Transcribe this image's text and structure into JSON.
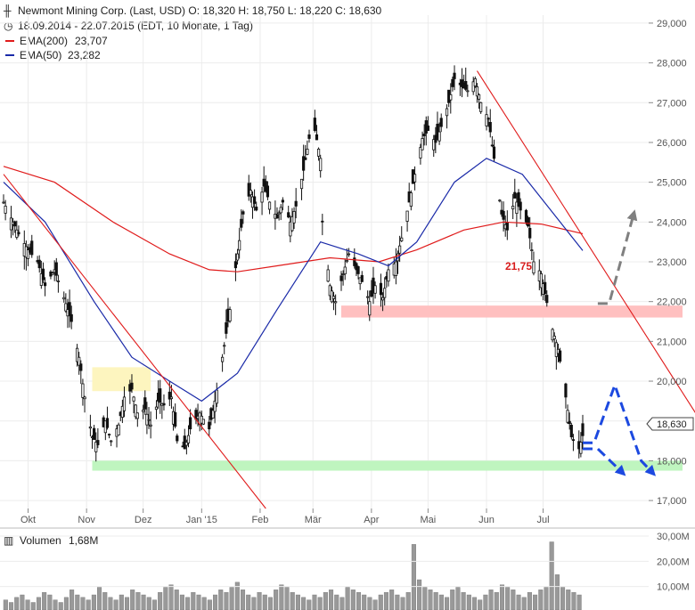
{
  "header": {
    "title_line": "Newmont Mining Corp. (Last, USD)  O: 18,320  H: 18,750  L: 18,220  C: 18,630",
    "period_line": "18.09.2014 - 22.07.2015 (EDT, 10 Monate, 1 Tag)",
    "legend": [
      {
        "label": "EMA(200)",
        "value": "23,707",
        "color": "#e01b1b"
      },
      {
        "label": "EMA(50)",
        "value": "23,282",
        "color": "#1a2aa8"
      }
    ],
    "volume_label": "Volumen",
    "volume_value": "1,68M"
  },
  "price_axis": {
    "ticks": [
      "29,000",
      "28,000",
      "27,000",
      "26,000",
      "25,000",
      "24,000",
      "23,000",
      "22,000",
      "21,000",
      "20,000",
      "19,000",
      "18,000",
      "17,000"
    ],
    "last_price_label": "18,630"
  },
  "volume_axis": {
    "ticks": [
      "30,00M",
      "20,00M",
      "10,00M"
    ]
  },
  "time_axis": {
    "labels": [
      "Okt",
      "Nov",
      "Dez",
      "Jan '15",
      "Feb",
      "Mär",
      "Apr",
      "Mai",
      "Jun",
      "Jul"
    ]
  },
  "annotations": {
    "resistance_label": "21,75"
  },
  "colors": {
    "candle": "#111111",
    "ema200": "#e01b1b",
    "ema50": "#1a2aa8",
    "trendline": "#e01b1b",
    "support_zone": "#bff5bf",
    "resistance_zone": "#ffc0c0",
    "old_zone": "#fdf5bf",
    "forecast_blue": "#1c49e0",
    "forecast_gray": "#808080",
    "volume": "#999999"
  },
  "chart_data": {
    "type": "candlestick",
    "title": "Newmont Mining Corp. (Last, USD)",
    "ylim": [
      16.8,
      29.2
    ],
    "x_range": [
      "2014-09-18",
      "2015-07-22"
    ],
    "last": {
      "open": 18.32,
      "high": 18.75,
      "low": 18.22,
      "close": 18.63
    },
    "price_path": [
      [
        "2014-09-18",
        24.5
      ],
      [
        "2014-09-22",
        24.1
      ],
      [
        "2014-09-26",
        23.7
      ],
      [
        "2014-10-01",
        23.3
      ],
      [
        "2014-10-06",
        23.0
      ],
      [
        "2014-10-10",
        22.4
      ],
      [
        "2014-10-15",
        22.8
      ],
      [
        "2014-10-20",
        22.1
      ],
      [
        "2014-10-24",
        21.5
      ],
      [
        "2014-10-28",
        20.6
      ],
      [
        "2014-10-31",
        19.6
      ],
      [
        "2014-11-04",
        18.6
      ],
      [
        "2014-11-07",
        18.4
      ],
      [
        "2014-11-11",
        19.0
      ],
      [
        "2014-11-14",
        18.5
      ],
      [
        "2014-11-18",
        18.9
      ],
      [
        "2014-11-21",
        19.6
      ],
      [
        "2014-11-25",
        19.8
      ],
      [
        "2014-11-28",
        19.2
      ],
      [
        "2014-12-02",
        19.3
      ],
      [
        "2014-12-05",
        18.9
      ],
      [
        "2014-12-09",
        19.5
      ],
      [
        "2014-12-12",
        19.4
      ],
      [
        "2014-12-16",
        19.6
      ],
      [
        "2014-12-19",
        18.5
      ],
      [
        "2014-12-23",
        18.3
      ],
      [
        "2014-12-26",
        18.8
      ],
      [
        "2014-12-31",
        19.2
      ],
      [
        "2015-01-05",
        18.8
      ],
      [
        "2015-01-08",
        19.5
      ],
      [
        "2015-01-12",
        20.6
      ],
      [
        "2015-01-16",
        21.8
      ],
      [
        "2015-01-20",
        23.2
      ],
      [
        "2015-01-23",
        24.2
      ],
      [
        "2015-01-27",
        24.8
      ],
      [
        "2015-01-30",
        24.3
      ],
      [
        "2015-02-03",
        24.9
      ],
      [
        "2015-02-06",
        24.5
      ],
      [
        "2015-02-10",
        24.1
      ],
      [
        "2015-02-13",
        24.5
      ],
      [
        "2015-02-17",
        24.0
      ],
      [
        "2015-02-20",
        24.4
      ],
      [
        "2015-02-24",
        25.3
      ],
      [
        "2015-02-27",
        26.1
      ],
      [
        "2015-03-02",
        26.3
      ],
      [
        "2015-03-05",
        25.6
      ],
      [
        "2015-03-06",
        24.0
      ],
      [
        "2015-03-10",
        22.4
      ],
      [
        "2015-03-13",
        22.0
      ],
      [
        "2015-03-17",
        22.7
      ],
      [
        "2015-03-20",
        23.2
      ],
      [
        "2015-03-24",
        22.8
      ],
      [
        "2015-03-27",
        22.5
      ],
      [
        "2015-03-31",
        22.0
      ],
      [
        "2015-04-03",
        22.4
      ],
      [
        "2015-04-07",
        22.1
      ],
      [
        "2015-04-10",
        22.8
      ],
      [
        "2015-04-14",
        23.0
      ],
      [
        "2015-04-17",
        23.6
      ],
      [
        "2015-04-21",
        24.5
      ],
      [
        "2015-04-24",
        25.2
      ],
      [
        "2015-04-28",
        26.1
      ],
      [
        "2015-05-01",
        26.3
      ],
      [
        "2015-05-05",
        26.0
      ],
      [
        "2015-05-08",
        26.4
      ],
      [
        "2015-05-12",
        27.0
      ],
      [
        "2015-05-15",
        27.6
      ],
      [
        "2015-05-19",
        27.4
      ],
      [
        "2015-05-22",
        27.3
      ],
      [
        "2015-05-26",
        27.6
      ],
      [
        "2015-05-29",
        27.0
      ],
      [
        "2015-06-02",
        26.6
      ],
      [
        "2015-06-05",
        25.6
      ],
      [
        "2015-06-09",
        24.2
      ],
      [
        "2015-06-12",
        23.8
      ],
      [
        "2015-06-16",
        24.6
      ],
      [
        "2015-06-19",
        24.3
      ],
      [
        "2015-06-23",
        23.9
      ],
      [
        "2015-06-26",
        23.0
      ],
      [
        "2015-06-30",
        22.7
      ],
      [
        "2015-07-02",
        22.2
      ],
      [
        "2015-07-06",
        21.3
      ],
      [
        "2015-07-09",
        20.8
      ],
      [
        "2015-07-13",
        19.6
      ],
      [
        "2015-07-16",
        18.6
      ],
      [
        "2015-07-20",
        18.3
      ],
      [
        "2015-07-22",
        18.63
      ]
    ],
    "ema200": [
      [
        "2014-09-18",
        25.4
      ],
      [
        "2014-10-15",
        25.0
      ],
      [
        "2014-11-15",
        24.0
      ],
      [
        "2014-12-15",
        23.2
      ],
      [
        "2015-01-05",
        22.8
      ],
      [
        "2015-01-20",
        22.75
      ],
      [
        "2015-02-10",
        22.9
      ],
      [
        "2015-03-10",
        23.1
      ],
      [
        "2015-04-05",
        23.0
      ],
      [
        "2015-04-25",
        23.3
      ],
      [
        "2015-05-20",
        23.8
      ],
      [
        "2015-06-10",
        24.0
      ],
      [
        "2015-06-30",
        23.95
      ],
      [
        "2015-07-22",
        23.707
      ]
    ],
    "ema50": [
      [
        "2014-09-18",
        25.0
      ],
      [
        "2014-10-10",
        24.0
      ],
      [
        "2014-11-05",
        22.0
      ],
      [
        "2014-11-25",
        20.6
      ],
      [
        "2014-12-15",
        20.0
      ],
      [
        "2015-01-01",
        19.5
      ],
      [
        "2015-01-20",
        20.2
      ],
      [
        "2015-02-10",
        21.8
      ],
      [
        "2015-03-05",
        23.5
      ],
      [
        "2015-03-25",
        23.2
      ],
      [
        "2015-04-10",
        22.9
      ],
      [
        "2015-04-25",
        23.5
      ],
      [
        "2015-05-15",
        25.0
      ],
      [
        "2015-06-01",
        25.6
      ],
      [
        "2015-06-20",
        25.2
      ],
      [
        "2015-07-10",
        24.0
      ],
      [
        "2015-07-22",
        23.282
      ]
    ],
    "volume": [
      4,
      3,
      5,
      6,
      4,
      3,
      5,
      7,
      6,
      4,
      3,
      5,
      8,
      6,
      5,
      4,
      6,
      9,
      7,
      5,
      4,
      6,
      5,
      8,
      7,
      6,
      5,
      4,
      7,
      9,
      10,
      8,
      6,
      5,
      7,
      6,
      5,
      4,
      6,
      8,
      7,
      9,
      11,
      8,
      6,
      5,
      7,
      6,
      5,
      8,
      10,
      9,
      7,
      6,
      5,
      4,
      6,
      5,
      7,
      8,
      6,
      5,
      9,
      8,
      7,
      6,
      5,
      4,
      6,
      7,
      8,
      6,
      5,
      7,
      26,
      12,
      9,
      8,
      7,
      6,
      5,
      8,
      9,
      7,
      6,
      5,
      4,
      6,
      8,
      7,
      10,
      9,
      8,
      6,
      5,
      7,
      6,
      8,
      9,
      27,
      14,
      9,
      8,
      7,
      6
    ],
    "volume_ylim": [
      0,
      30
    ],
    "trendlines": [
      {
        "start": [
          "2014-09-18",
          25.2
        ],
        "end": [
          "2015-02-04",
          16.8
        ]
      },
      {
        "start": [
          "2015-05-27",
          27.8
        ],
        "end": [
          "2015-10-10",
          17.7
        ]
      }
    ],
    "zones": [
      {
        "name": "support",
        "low": 17.75,
        "high": 18.0,
        "from": "2014-11-04",
        "to": "2015-10-10"
      },
      {
        "name": "resistance",
        "low": 21.6,
        "high": 21.9,
        "from": "2015-03-16",
        "to": "2015-10-10"
      },
      {
        "name": "old",
        "low": 19.75,
        "high": 20.35,
        "from": "2014-11-04",
        "to": "2014-12-05"
      }
    ],
    "forecast_paths": [
      {
        "style": "blue-up",
        "points": [
          [
            "2015-07-22",
            18.45
          ],
          [
            "2015-07-28",
            18.45
          ],
          [
            "2015-08-08",
            19.9
          ],
          [
            "2015-08-22",
            18.0
          ],
          [
            "2015-08-28",
            17.7
          ]
        ]
      },
      {
        "style": "blue-down",
        "points": [
          [
            "2015-07-22",
            18.3
          ],
          [
            "2015-07-30",
            18.3
          ],
          [
            "2015-08-12",
            17.7
          ]
        ]
      },
      {
        "style": "gray-up",
        "points": [
          [
            "2015-07-30",
            21.95
          ],
          [
            "2015-08-05",
            21.95
          ],
          [
            "2015-08-18",
            24.2
          ]
        ]
      }
    ]
  }
}
